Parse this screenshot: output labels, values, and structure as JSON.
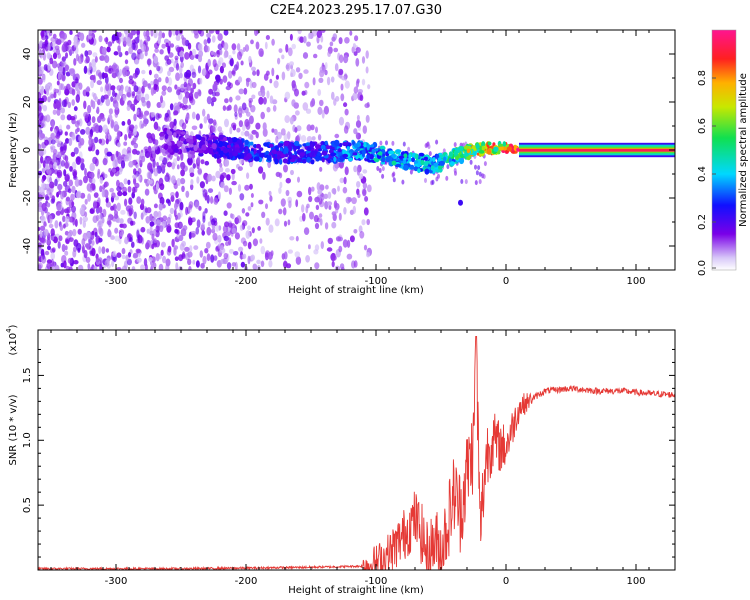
{
  "title": "C2E4.2023.295.17.07.G30",
  "chart_data": [
    {
      "type": "heatmap",
      "xlabel": "Height of straight line (km)",
      "ylabel": "Frequency (Hz)",
      "xlim": [
        -360,
        130
      ],
      "ylim": [
        -50,
        50
      ],
      "x_ticks": [
        -300,
        -200,
        -100,
        0,
        100
      ],
      "y_ticks": [
        -40,
        -20,
        0,
        20,
        40
      ],
      "x_tick_labels": [
        "-300",
        "-200",
        "-100",
        "0",
        "100"
      ],
      "y_tick_labels": [
        "-40",
        "-20",
        "0",
        "20",
        "40"
      ],
      "colorbar": {
        "label": "Normalized spectral amplitude",
        "range": [
          0.0,
          1.0
        ],
        "ticks": [
          0.0,
          0.2,
          0.4,
          0.6,
          0.8
        ],
        "tick_labels": [
          "0.0",
          "0.2",
          "0.4",
          "0.6",
          "0.8"
        ],
        "colormap": "rainbow (white-violet-blue-cyan-green-yellow-red-magenta)"
      },
      "signal_track": {
        "description_points_x": [
          -265,
          -230,
          -200,
          -170,
          -140,
          -110,
          -90,
          -70,
          -55,
          -40,
          -25,
          -10,
          0,
          10,
          130
        ],
        "frequency_hz": [
          4,
          2,
          0,
          -1,
          -1,
          0,
          -3,
          -5,
          -6,
          -3,
          0,
          1,
          1,
          0,
          0
        ],
        "amplitude": [
          0.15,
          0.2,
          0.3,
          0.3,
          0.3,
          0.4,
          0.45,
          0.45,
          0.4,
          0.55,
          0.75,
          0.8,
          0.85,
          0.95,
          0.95
        ]
      },
      "grid": false
    },
    {
      "type": "line",
      "xlabel": "Height of straight line (km)",
      "ylabel": "SNR (10 * v/v)",
      "y_scale_label": "(x10^4)",
      "xlim": [
        -360,
        130
      ],
      "ylim": [
        0,
        1.85
      ],
      "x_ticks": [
        -300,
        -200,
        -100,
        0,
        100
      ],
      "y_ticks": [
        0.5,
        1.0,
        1.5
      ],
      "x_tick_labels": [
        "-300",
        "-200",
        "-100",
        "0",
        "100"
      ],
      "y_tick_labels": [
        "0.5",
        "1.0",
        "1.5"
      ],
      "series": [
        {
          "color": "#e53935",
          "x": [
            -360,
            -300,
            -250,
            -200,
            -160,
            -130,
            -110,
            -100,
            -90,
            -80,
            -70,
            -65,
            -60,
            -55,
            -50,
            -45,
            -40,
            -35,
            -30,
            -25,
            -23,
            -20,
            -15,
            -10,
            -5,
            0,
            5,
            10,
            20,
            30,
            50,
            70,
            90,
            110,
            130
          ],
          "y": [
            0.01,
            0.01,
            0.01,
            0.015,
            0.02,
            0.025,
            0.03,
            0.05,
            0.12,
            0.25,
            0.4,
            0.28,
            0.1,
            0.22,
            0.15,
            0.35,
            0.6,
            0.45,
            0.75,
            0.95,
            1.8,
            0.3,
            0.9,
            1.0,
            0.95,
            0.95,
            1.1,
            1.25,
            1.32,
            1.38,
            1.4,
            1.38,
            1.38,
            1.36,
            1.35
          ]
        }
      ],
      "grid": false
    }
  ]
}
